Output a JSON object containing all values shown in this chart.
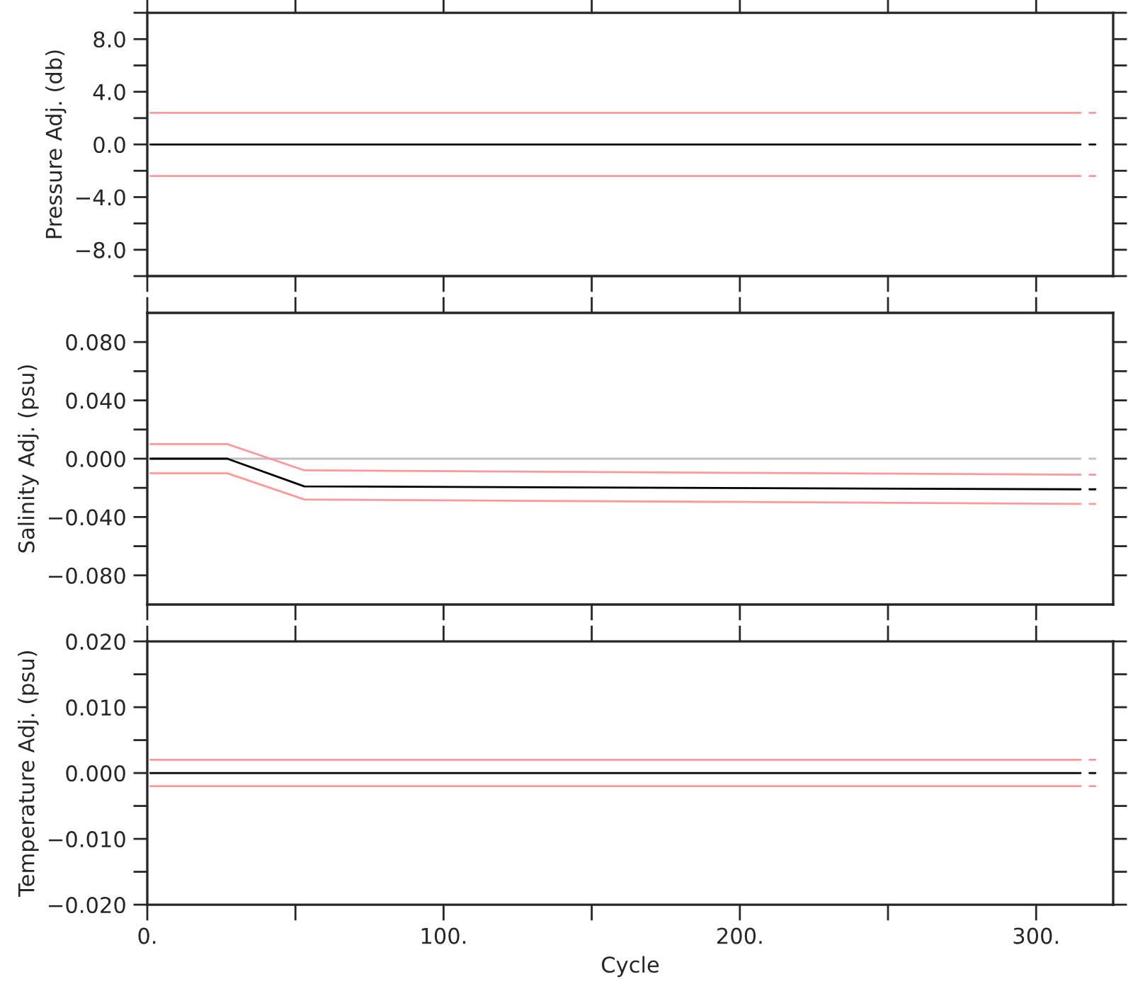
{
  "chart_data": [
    {
      "type": "line",
      "ylabel": "Pressure Adj. (db)",
      "x": [
        1,
        27,
        53,
        315,
        316,
        318,
        320
      ],
      "series": [
        {
          "color": "#ff9999",
          "values": [
            2.4,
            2.4,
            2.4,
            2.4,
            null,
            2.4,
            2.4
          ]
        },
        {
          "color": "#ff9999",
          "values": [
            -2.4,
            -2.4,
            -2.4,
            -2.4,
            null,
            -2.4,
            -2.4
          ]
        },
        {
          "color": "#000000",
          "values": [
            0,
            0,
            0,
            0,
            null,
            0,
            0
          ]
        }
      ],
      "xlim": [
        0,
        326
      ],
      "xticks": [
        {
          "value": 0,
          "label": null
        },
        {
          "value": 50,
          "label": null
        },
        {
          "value": 100,
          "label": null
        },
        {
          "value": 150,
          "label": null
        },
        {
          "value": 200,
          "label": null
        },
        {
          "value": 250,
          "label": null
        },
        {
          "value": 300,
          "label": null
        }
      ],
      "ylim": [
        -10,
        10
      ],
      "yticks": [
        {
          "value": -10,
          "label": null
        },
        {
          "value": -8,
          "label": "−8.0"
        },
        {
          "value": -6,
          "label": null
        },
        {
          "value": -4,
          "label": "−4.0"
        },
        {
          "value": -2,
          "label": null
        },
        {
          "value": 0,
          "label": "0.0"
        },
        {
          "value": 2,
          "label": null
        },
        {
          "value": 4,
          "label": "4.0"
        },
        {
          "value": 6,
          "label": null
        },
        {
          "value": 8,
          "label": "8.0"
        },
        {
          "value": 10,
          "label": null
        }
      ],
      "tick_labels": "y",
      "grid": false
    },
    {
      "type": "line",
      "ylabel": "Salinity Adj. (psu)",
      "x": [
        1,
        27,
        53,
        315,
        316,
        318,
        320
      ],
      "series": [
        {
          "color": "#c0c0c0",
          "values": [
            0,
            0,
            0,
            0,
            null,
            0,
            0
          ]
        },
        {
          "color": "#ff9999",
          "values": [
            0.01,
            0.01,
            -0.008,
            -0.011,
            null,
            -0.011,
            -0.011
          ]
        },
        {
          "color": "#ff9999",
          "values": [
            -0.01,
            -0.01,
            -0.028,
            -0.031,
            null,
            -0.031,
            -0.031
          ]
        },
        {
          "color": "#000000",
          "values": [
            0,
            0,
            -0.019,
            -0.021,
            null,
            -0.021,
            -0.021
          ]
        }
      ],
      "xlim": [
        0,
        326
      ],
      "xticks": [
        {
          "value": 0,
          "label": null
        },
        {
          "value": 50,
          "label": null
        },
        {
          "value": 100,
          "label": null
        },
        {
          "value": 150,
          "label": null
        },
        {
          "value": 200,
          "label": null
        },
        {
          "value": 250,
          "label": null
        },
        {
          "value": 300,
          "label": null
        }
      ],
      "ylim": [
        -0.1,
        0.1
      ],
      "yticks": [
        {
          "value": -0.08,
          "label": "−0.080"
        },
        {
          "value": -0.06,
          "label": null
        },
        {
          "value": -0.04,
          "label": "−0.040"
        },
        {
          "value": -0.02,
          "label": null
        },
        {
          "value": 0,
          "label": "0.000"
        },
        {
          "value": 0.02,
          "label": null
        },
        {
          "value": 0.04,
          "label": "0.040"
        },
        {
          "value": 0.06,
          "label": null
        },
        {
          "value": 0.08,
          "label": "0.080"
        }
      ],
      "tick_labels": "y",
      "grid": false
    },
    {
      "type": "line",
      "ylabel": "Temperature Adj. (psu)",
      "xlabel": "Cycle",
      "x": [
        1,
        27,
        53,
        315,
        316,
        318,
        320
      ],
      "series": [
        {
          "color": "#ff9999",
          "values": [
            0.002,
            0.002,
            0.002,
            0.002,
            null,
            0.002,
            0.002
          ]
        },
        {
          "color": "#ff9999",
          "values": [
            -0.002,
            -0.002,
            -0.002,
            -0.002,
            null,
            -0.002,
            -0.002
          ]
        },
        {
          "color": "#000000",
          "values": [
            0,
            0,
            0,
            0,
            null,
            0,
            0
          ]
        }
      ],
      "xlim": [
        0,
        326
      ],
      "xticks": [
        {
          "value": 0,
          "label": "0."
        },
        {
          "value": 50,
          "label": null
        },
        {
          "value": 100,
          "label": "100."
        },
        {
          "value": 150,
          "label": null
        },
        {
          "value": 200,
          "label": "200."
        },
        {
          "value": 250,
          "label": null
        },
        {
          "value": 300,
          "label": "300."
        }
      ],
      "ylim": [
        -0.02,
        0.02
      ],
      "yticks": [
        {
          "value": -0.02,
          "label": "−0.020"
        },
        {
          "value": -0.015,
          "label": null
        },
        {
          "value": -0.01,
          "label": "−0.010"
        },
        {
          "value": -0.005,
          "label": null
        },
        {
          "value": 0,
          "label": "0.000"
        },
        {
          "value": 0.005,
          "label": null
        },
        {
          "value": 0.01,
          "label": "0.010"
        },
        {
          "value": 0.015,
          "label": null
        },
        {
          "value": 0.02,
          "label": "0.020"
        }
      ],
      "grid": false
    }
  ]
}
